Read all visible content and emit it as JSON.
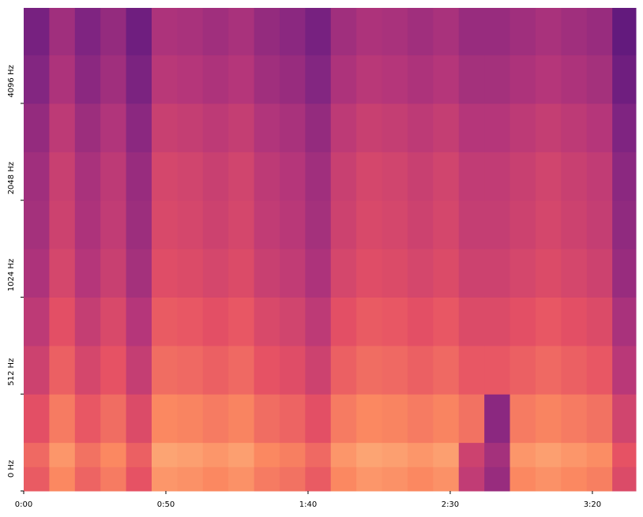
{
  "chart_data": {
    "type": "spectrogram",
    "colormap": "magma",
    "zlim": [
      0,
      100
    ],
    "xlim": [
      0,
      215.3
    ],
    "ylim": [
      0,
      8110
    ],
    "yscale": "symlog",
    "xticks": [
      {
        "value": 0,
        "label": "0:00"
      },
      {
        "value": 50,
        "label": "0:50"
      },
      {
        "value": 100,
        "label": "1:40"
      },
      {
        "value": 150,
        "label": "2:30"
      },
      {
        "value": 200,
        "label": "3:20"
      }
    ],
    "yticks": [
      {
        "value": 0,
        "label": "0 Hz"
      },
      {
        "value": 512,
        "label": "512 Hz"
      },
      {
        "value": 1024,
        "label": "1024 Hz"
      },
      {
        "value": 2048,
        "label": "2048 Hz"
      },
      {
        "value": 4096,
        "label": "4096 Hz"
      }
    ],
    "time_bins": [
      0,
      9,
      18,
      27,
      36,
      45,
      54,
      63,
      72,
      81,
      90,
      99,
      108,
      117,
      126,
      135,
      144,
      153,
      162,
      171,
      180,
      189,
      198,
      207,
      215.3
    ],
    "freq_bins": [
      0,
      128,
      256,
      512,
      724,
      1024,
      1448,
      2048,
      2896,
      4096,
      5793,
      8110
    ],
    "values": [
      [
        65,
        75,
        67,
        72,
        63,
        78,
        77,
        75,
        77,
        72,
        70,
        65,
        75,
        78,
        77,
        75,
        77,
        53,
        43,
        75,
        77,
        75,
        73,
        60
      ],
      [
        68,
        78,
        70,
        75,
        66,
        81,
        80,
        78,
        80,
        75,
        73,
        68,
        78,
        81,
        80,
        78,
        80,
        56,
        46,
        78,
        80,
        78,
        76,
        63
      ],
      [
        62,
        72,
        64,
        69,
        60,
        75,
        74,
        72,
        74,
        69,
        67,
        62,
        72,
        75,
        74,
        72,
        74,
        70,
        40,
        72,
        74,
        72,
        70,
        57
      ],
      [
        56,
        66,
        58,
        63,
        54,
        69,
        68,
        66,
        68,
        63,
        61,
        56,
        66,
        69,
        68,
        66,
        68,
        64,
        64,
        66,
        68,
        66,
        64,
        51
      ],
      [
        52,
        62,
        54,
        59,
        50,
        65,
        64,
        62,
        64,
        59,
        57,
        52,
        62,
        65,
        64,
        62,
        64,
        60,
        60,
        62,
        64,
        62,
        60,
        47
      ],
      [
        48,
        58,
        50,
        55,
        46,
        61,
        60,
        58,
        60,
        55,
        53,
        48,
        58,
        61,
        60,
        58,
        60,
        56,
        56,
        58,
        60,
        58,
        56,
        43
      ],
      [
        46,
        56,
        48,
        53,
        44,
        59,
        58,
        56,
        58,
        53,
        51,
        46,
        56,
        59,
        58,
        56,
        58,
        54,
        54,
        56,
        58,
        56,
        54,
        41
      ],
      [
        45,
        55,
        47,
        52,
        43,
        58,
        57,
        55,
        57,
        52,
        50,
        45,
        55,
        58,
        57,
        55,
        57,
        53,
        53,
        55,
        57,
        55,
        53,
        40
      ],
      [
        42,
        52,
        44,
        49,
        40,
        55,
        54,
        52,
        54,
        49,
        47,
        42,
        52,
        55,
        54,
        52,
        54,
        50,
        50,
        52,
        54,
        52,
        50,
        37
      ],
      [
        38,
        48,
        40,
        45,
        36,
        51,
        50,
        48,
        50,
        45,
        43,
        38,
        48,
        51,
        50,
        48,
        50,
        46,
        46,
        48,
        50,
        48,
        46,
        33
      ],
      [
        35,
        45,
        37,
        42,
        33,
        48,
        47,
        45,
        47,
        42,
        40,
        35,
        45,
        48,
        47,
        45,
        47,
        43,
        43,
        45,
        47,
        45,
        43,
        30
      ]
    ]
  }
}
